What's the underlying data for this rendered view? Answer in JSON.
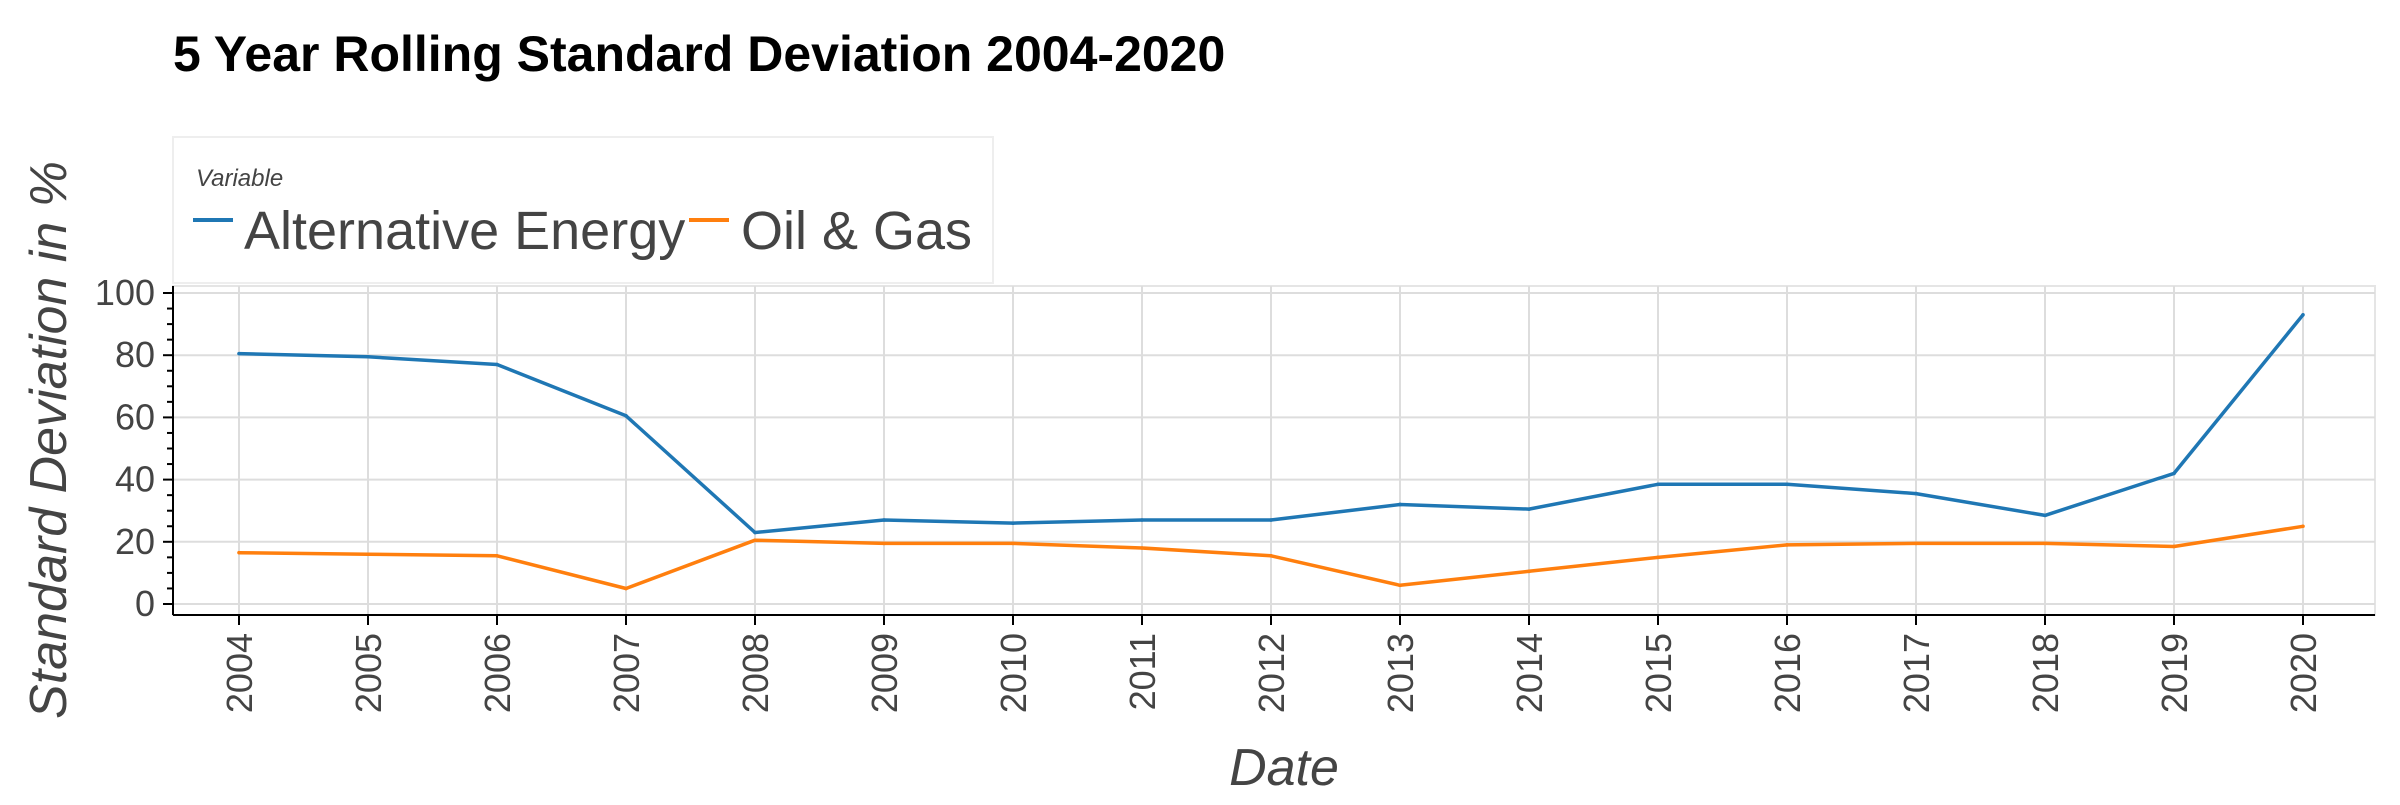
{
  "chart_data": {
    "type": "line",
    "title": "5 Year Rolling Standard Deviation 2004-2020",
    "xlabel": "Date",
    "ylabel": "Standard Deviation in %",
    "x": [
      "2004",
      "2005",
      "2006",
      "2007",
      "2008",
      "2009",
      "2010",
      "2011",
      "2012",
      "2013",
      "2014",
      "2015",
      "2016",
      "2017",
      "2018",
      "2019",
      "2020"
    ],
    "ylim": [
      0,
      100
    ],
    "yticks": [
      0,
      20,
      40,
      60,
      80,
      100
    ],
    "grid": true,
    "legend": {
      "title": "Variable",
      "placement": "top-left"
    },
    "series": [
      {
        "name": "Alternative Energy",
        "color": "#1f77b4",
        "values": [
          80.5,
          79.5,
          77.0,
          60.5,
          23.0,
          27.0,
          26.0,
          27.0,
          27.0,
          32.0,
          30.5,
          38.5,
          38.5,
          35.5,
          28.5,
          42.0,
          93.0
        ]
      },
      {
        "name": "Oil & Gas",
        "color": "#ff7f0e",
        "values": [
          16.5,
          16.0,
          15.5,
          5.0,
          20.5,
          19.5,
          19.5,
          18.0,
          15.5,
          6.0,
          10.5,
          15.0,
          19.0,
          19.5,
          19.5,
          18.5,
          25.0
        ]
      }
    ]
  }
}
